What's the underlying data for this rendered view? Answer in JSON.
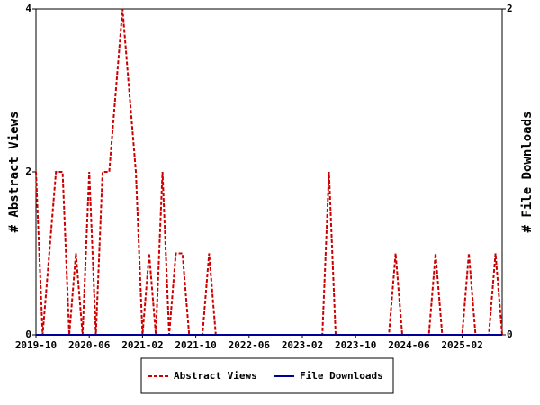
{
  "chart_data": {
    "type": "line",
    "x": [
      "2019-10",
      "2019-11",
      "2019-12",
      "2020-01",
      "2020-02",
      "2020-03",
      "2020-04",
      "2020-05",
      "2020-06",
      "2020-07",
      "2020-08",
      "2020-09",
      "2020-10",
      "2020-11",
      "2020-12",
      "2021-01",
      "2021-02",
      "2021-03",
      "2021-04",
      "2021-05",
      "2021-06",
      "2021-07",
      "2021-08",
      "2021-09",
      "2021-10",
      "2021-11",
      "2021-12",
      "2022-01",
      "2022-02",
      "2022-03",
      "2022-04",
      "2022-05",
      "2022-06",
      "2022-07",
      "2022-08",
      "2022-09",
      "2022-10",
      "2022-11",
      "2022-12",
      "2023-01",
      "2023-02",
      "2023-03",
      "2023-04",
      "2023-05",
      "2023-06",
      "2023-07",
      "2023-08",
      "2023-09",
      "2023-10",
      "2023-11",
      "2023-12",
      "2024-01",
      "2024-02",
      "2024-03",
      "2024-04",
      "2024-05",
      "2024-06",
      "2024-07",
      "2024-08",
      "2024-09",
      "2024-10",
      "2024-11",
      "2024-12",
      "2025-01",
      "2025-02",
      "2025-03",
      "2025-04",
      "2025-05",
      "2025-06",
      "2025-07",
      "2025-08"
    ],
    "xlim": [
      "2019-10",
      "2025-08"
    ],
    "xticks": [
      "2019-10",
      "2020-06",
      "2021-02",
      "2021-10",
      "2022-06",
      "2023-02",
      "2023-10",
      "2024-06",
      "2025-02"
    ],
    "ylabel": "# Abstract Views",
    "y2label": "# File Downloads",
    "ylim": [
      0,
      4
    ],
    "yticks": [
      0,
      2,
      4
    ],
    "y2lim": [
      0,
      2
    ],
    "y2ticks": [
      0,
      2
    ],
    "series": [
      {
        "name": "Abstract Views",
        "color": "#cc0000",
        "dashed": true,
        "values": [
          2,
          0,
          1,
          2,
          2,
          0,
          1,
          0,
          2,
          0,
          2,
          2,
          3,
          4,
          3,
          2,
          0,
          1,
          0,
          2,
          0,
          1,
          1,
          0,
          0,
          0,
          1,
          0,
          0,
          0,
          0,
          0,
          0,
          0,
          0,
          0,
          0,
          0,
          0,
          0,
          0,
          0,
          0,
          0,
          2,
          0,
          0,
          0,
          0,
          0,
          0,
          0,
          0,
          0,
          1,
          0,
          0,
          0,
          0,
          0,
          1,
          0,
          0,
          0,
          0,
          1,
          0,
          0,
          0,
          1,
          0
        ]
      },
      {
        "name": "File Downloads",
        "color": "#000099",
        "dashed": false,
        "axis": "y2",
        "values": [
          0,
          0,
          0,
          0,
          0,
          0,
          0,
          0,
          0,
          0,
          0,
          0,
          0,
          0,
          0,
          0,
          0,
          0,
          0,
          0,
          0,
          0,
          0,
          0,
          0,
          0,
          0,
          0,
          0,
          0,
          0,
          0,
          0,
          0,
          0,
          0,
          0,
          0,
          0,
          0,
          0,
          0,
          0,
          0,
          0,
          0,
          0,
          0,
          0,
          0,
          0,
          0,
          0,
          0,
          0,
          0,
          0,
          0,
          0,
          0,
          0,
          0,
          0,
          0,
          0,
          0,
          0,
          0,
          0,
          0,
          0
        ]
      }
    ],
    "legend": "bottom"
  }
}
